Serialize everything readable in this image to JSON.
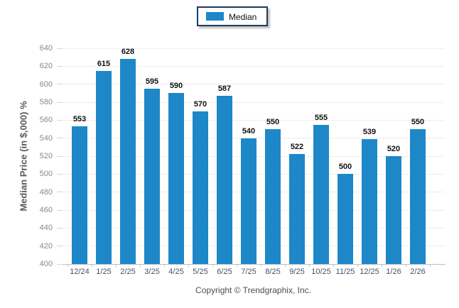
{
  "legend": {
    "label": "Median",
    "swatch_color": "#1e87c8"
  },
  "footer": {
    "copyright": "Copyright © Trendgraphix, Inc."
  },
  "colors": {
    "bar": "#1e87c8",
    "legend_border": "#1c3b5e",
    "gridline": "#ededed",
    "axis_line": "#bdbdbd",
    "y_tick_label": "#8b8984",
    "x_tick_label": "#44506b",
    "value_label": "#111111",
    "axis_title": "#595959",
    "copyright": "#4d4d4d"
  },
  "chart_data": {
    "type": "bar",
    "title": "",
    "xlabel": "",
    "ylabel": "Median Price (in $,000) %",
    "categories": [
      "12/24",
      "1/25",
      "2/25",
      "3/25",
      "4/25",
      "5/25",
      "6/25",
      "7/25",
      "8/25",
      "9/25",
      "10/25",
      "11/25",
      "12/25",
      "1/26",
      "2/26"
    ],
    "series": [
      {
        "name": "Median",
        "values": [
          553,
          615,
          628,
          595,
          590,
          570,
          587,
          540,
          550,
          522,
          555,
          500,
          539,
          520,
          550
        ]
      }
    ],
    "ylim": [
      400,
      640
    ],
    "ytick_step": 20,
    "grid": true,
    "legend_position": "top-center",
    "value_labels": true,
    "bar_color": "#1e87c8"
  }
}
